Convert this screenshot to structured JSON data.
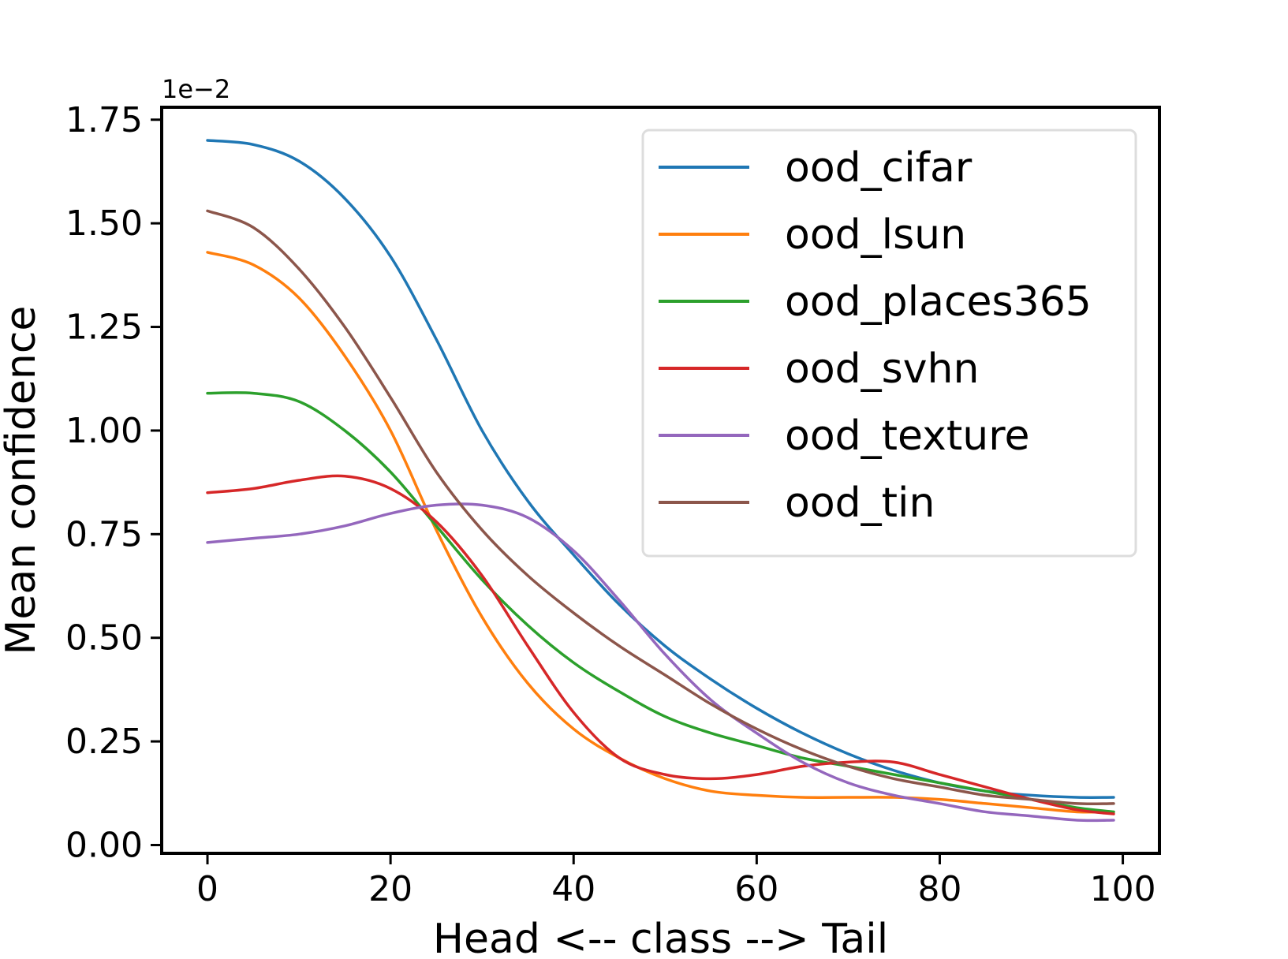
{
  "chart_data": {
    "type": "line",
    "title": "",
    "xlabel": "Head <-- class --> Tail",
    "ylabel": "Mean confidence",
    "y_offset_label": "1e−2",
    "xlim": [
      -5,
      104
    ],
    "ylim": [
      -0.02,
      1.78
    ],
    "x_ticks": [
      0,
      20,
      40,
      60,
      80,
      100
    ],
    "x_tick_labels": [
      "0",
      "20",
      "40",
      "60",
      "80",
      "100"
    ],
    "y_ticks": [
      0.0,
      0.25,
      0.5,
      0.75,
      1.0,
      1.25,
      1.5,
      1.75
    ],
    "y_tick_labels": [
      "0.00",
      "0.25",
      "0.50",
      "0.75",
      "1.00",
      "1.25",
      "1.50",
      "1.75"
    ],
    "grid": false,
    "legend_position": "upper-right",
    "x": [
      0,
      5,
      10,
      15,
      20,
      25,
      30,
      35,
      40,
      45,
      50,
      55,
      60,
      65,
      70,
      75,
      80,
      85,
      90,
      95,
      99
    ],
    "series": [
      {
        "name": "ood_cifar",
        "color": "#1f77b4",
        "values": [
          1.7,
          1.69,
          1.65,
          1.56,
          1.42,
          1.22,
          1.0,
          0.83,
          0.7,
          0.58,
          0.48,
          0.4,
          0.33,
          0.27,
          0.22,
          0.18,
          0.15,
          0.13,
          0.12,
          0.115,
          0.115
        ]
      },
      {
        "name": "ood_lsun",
        "color": "#ff7f0e",
        "values": [
          1.43,
          1.4,
          1.32,
          1.18,
          1.0,
          0.76,
          0.55,
          0.39,
          0.28,
          0.21,
          0.16,
          0.13,
          0.12,
          0.115,
          0.115,
          0.115,
          0.11,
          0.1,
          0.09,
          0.08,
          0.08
        ]
      },
      {
        "name": "ood_places365",
        "color": "#2ca02c",
        "values": [
          1.09,
          1.09,
          1.07,
          1.0,
          0.9,
          0.77,
          0.64,
          0.53,
          0.44,
          0.37,
          0.31,
          0.27,
          0.24,
          0.21,
          0.19,
          0.17,
          0.15,
          0.13,
          0.11,
          0.09,
          0.08
        ]
      },
      {
        "name": "ood_svhn",
        "color": "#d62728",
        "values": [
          0.85,
          0.86,
          0.88,
          0.89,
          0.86,
          0.78,
          0.65,
          0.48,
          0.32,
          0.21,
          0.17,
          0.16,
          0.17,
          0.19,
          0.2,
          0.2,
          0.17,
          0.14,
          0.11,
          0.085,
          0.075
        ]
      },
      {
        "name": "ood_texture",
        "color": "#9467bd",
        "values": [
          0.73,
          0.74,
          0.75,
          0.77,
          0.8,
          0.82,
          0.82,
          0.79,
          0.71,
          0.59,
          0.46,
          0.35,
          0.27,
          0.2,
          0.15,
          0.12,
          0.1,
          0.08,
          0.07,
          0.06,
          0.06
        ]
      },
      {
        "name": "ood_tin",
        "color": "#8c564b",
        "values": [
          1.53,
          1.49,
          1.39,
          1.25,
          1.08,
          0.9,
          0.76,
          0.65,
          0.56,
          0.48,
          0.41,
          0.34,
          0.28,
          0.23,
          0.19,
          0.16,
          0.14,
          0.12,
          0.11,
          0.1,
          0.1
        ]
      }
    ]
  }
}
